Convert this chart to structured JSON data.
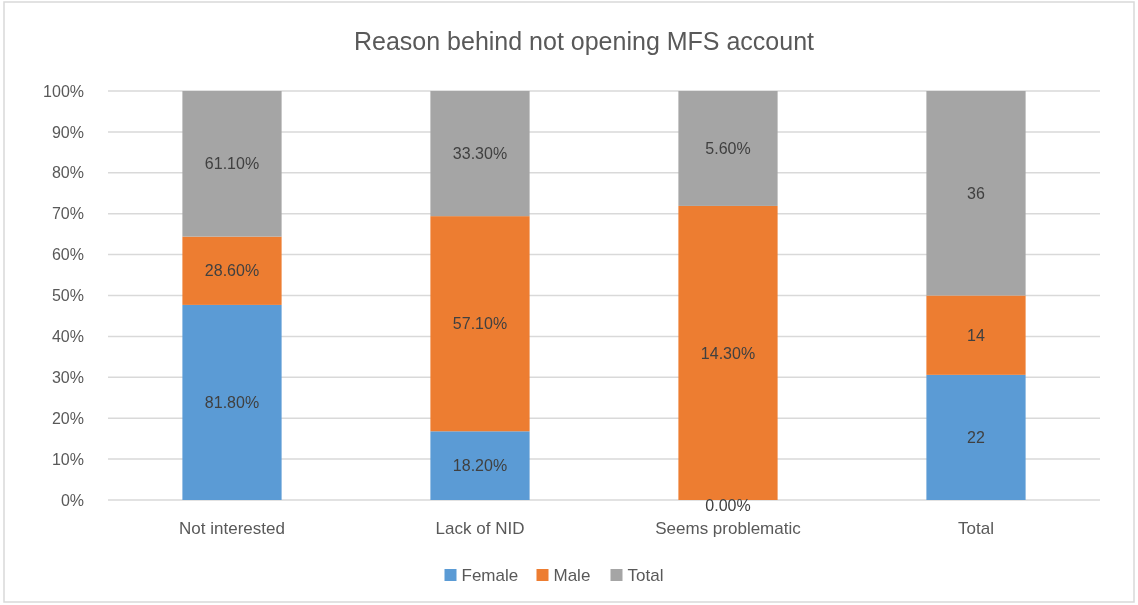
{
  "chart_data": {
    "type": "bar",
    "stacked": true,
    "title": "Reason behind not opening MFS account",
    "categories": [
      "Not interested",
      "Lack of NID",
      "Seems problematic",
      "Total"
    ],
    "series": [
      {
        "name": "Female",
        "color": "#5b9bd5",
        "values": [
          47.7,
          16.8,
          0,
          30.6
        ]
      },
      {
        "name": "Male",
        "color": "#ed7d31",
        "values": [
          16.7,
          52.6,
          71.9,
          19.4
        ]
      },
      {
        "name": "Total",
        "color": "#a5a5a5",
        "values": [
          35.6,
          30.6,
          28.1,
          50.0
        ]
      }
    ],
    "annotations": [
      "81.80%",
      "28.60%",
      "61.10%",
      "18.20%",
      "57.10%",
      "33.30%",
      "0.00%",
      "14.30%",
      "5.60%",
      "22",
      "14",
      "36"
    ],
    "ylim": [
      0,
      100
    ],
    "yticks": [
      {
        "value": 0,
        "label": "0%"
      },
      {
        "value": 10,
        "label": "10%"
      },
      {
        "value": 20,
        "label": "20%"
      },
      {
        "value": 30,
        "label": "30%"
      },
      {
        "value": 40,
        "label": "40%"
      },
      {
        "value": 50,
        "label": "50%"
      },
      {
        "value": 60,
        "label": "60%"
      },
      {
        "value": 70,
        "label": "70%"
      },
      {
        "value": 80,
        "label": "80%"
      },
      {
        "value": 90,
        "label": "90%"
      },
      {
        "value": 100,
        "label": "100%"
      }
    ],
    "grid": "y",
    "legend": "bottom"
  }
}
